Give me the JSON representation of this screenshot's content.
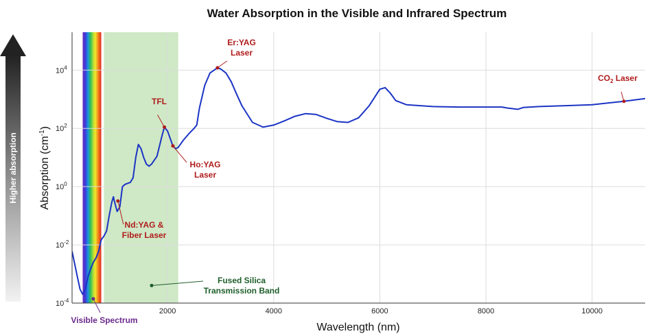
{
  "chart_data": {
    "type": "line",
    "title": "Water Absorption in the Visible and Infrared Spectrum",
    "xlabel": "Wavelength (nm)",
    "ylabel_main": "Absorption (cm",
    "ylabel_sup": "-1",
    "ylabel_end": ")",
    "side_arrow_label": "Higher absorption",
    "x_scale": "linear",
    "y_scale": "log",
    "xlim": [
      200,
      11000
    ],
    "ylim": [
      0.0001,
      200000
    ],
    "grid": true,
    "x_ticks": [
      2000,
      4000,
      6000,
      8000,
      10000
    ],
    "x_tick_labels": [
      "2000",
      "4000",
      "6000",
      "8000",
      "10000"
    ],
    "y_ticks": [
      0.0001,
      0.01,
      1,
      100,
      10000
    ],
    "y_tick_base": [
      "10",
      "10",
      "10",
      "10",
      "10"
    ],
    "y_tick_exp": [
      "-4",
      "-2",
      "0",
      "2",
      "4"
    ],
    "line_color": "#1a33c4",
    "series": [
      {
        "points": [
          [
            200,
            0.006
          ],
          [
            300,
            0.0008
          ],
          [
            350,
            0.0003
          ],
          [
            400,
            0.0002
          ],
          [
            450,
            0.0003
          ],
          [
            500,
            0.0008
          ],
          [
            550,
            0.0015
          ],
          [
            600,
            0.0025
          ],
          [
            650,
            0.0035
          ],
          [
            700,
            0.006
          ],
          [
            750,
            0.015
          ],
          [
            800,
            0.02
          ],
          [
            850,
            0.03
          ],
          [
            900,
            0.1
          ],
          [
            950,
            0.3
          ],
          [
            980,
            0.45
          ],
          [
            1000,
            0.3
          ],
          [
            1050,
            0.14
          ],
          [
            1100,
            0.2
          ],
          [
            1150,
            1.0
          ],
          [
            1200,
            1.2
          ],
          [
            1250,
            1.3
          ],
          [
            1300,
            1.4
          ],
          [
            1350,
            2.0
          ],
          [
            1400,
            10
          ],
          [
            1450,
            28
          ],
          [
            1500,
            20
          ],
          [
            1550,
            10
          ],
          [
            1600,
            6
          ],
          [
            1650,
            5
          ],
          [
            1700,
            6
          ],
          [
            1800,
            11
          ],
          [
            1900,
            60
          ],
          [
            1940,
            110
          ],
          [
            2000,
            80
          ],
          [
            2050,
            45
          ],
          [
            2100,
            25
          ],
          [
            2150,
            20
          ],
          [
            2200,
            22
          ],
          [
            2300,
            40
          ],
          [
            2400,
            65
          ],
          [
            2500,
            100
          ],
          [
            2550,
            130
          ],
          [
            2600,
            500
          ],
          [
            2700,
            3000
          ],
          [
            2800,
            8000
          ],
          [
            2940,
            12000
          ],
          [
            3000,
            11000
          ],
          [
            3100,
            8000
          ],
          [
            3200,
            4000
          ],
          [
            3300,
            1500
          ],
          [
            3400,
            600
          ],
          [
            3600,
            160
          ],
          [
            3800,
            110
          ],
          [
            4000,
            130
          ],
          [
            4200,
            180
          ],
          [
            4400,
            260
          ],
          [
            4600,
            320
          ],
          [
            4800,
            300
          ],
          [
            5000,
            220
          ],
          [
            5200,
            170
          ],
          [
            5400,
            160
          ],
          [
            5600,
            230
          ],
          [
            5800,
            600
          ],
          [
            6000,
            2200
          ],
          [
            6100,
            2500
          ],
          [
            6200,
            1600
          ],
          [
            6300,
            900
          ],
          [
            6500,
            650
          ],
          [
            7000,
            560
          ],
          [
            7500,
            540
          ],
          [
            8000,
            540
          ],
          [
            8300,
            540
          ],
          [
            8400,
            500
          ],
          [
            8600,
            450
          ],
          [
            8700,
            520
          ],
          [
            9000,
            560
          ],
          [
            9500,
            600
          ],
          [
            10000,
            650
          ],
          [
            10600,
            850
          ],
          [
            11000,
            1050
          ]
        ]
      }
    ],
    "annotations": [
      {
        "label": "Er:YAG",
        "label2": "Laser",
        "x": 2940,
        "y": 12000,
        "color": "#b01c1c"
      },
      {
        "label": "TFL",
        "label2": "",
        "x": 1940,
        "y": 110,
        "color": "#b01c1c"
      },
      {
        "label": "Ho:YAG",
        "label2": "Laser",
        "x": 2100,
        "y": 25,
        "color": "#b01c1c"
      },
      {
        "label": "Nd:YAG &",
        "label2": "Fiber Laser",
        "x": 1064,
        "y": 0.32,
        "color": "#b01c1c"
      },
      {
        "label": "CO2 Laser",
        "label2": "",
        "x": 10600,
        "y": 850,
        "color": "#b01c1c"
      }
    ],
    "co2_label": {
      "base": "CO",
      "sub": "2",
      "rest": " Laser"
    },
    "bands": [
      {
        "name": "Fused Silica",
        "name2": "Transmission Band",
        "x_start": 800,
        "x_end": 2200,
        "color": "#cfe8c6"
      },
      {
        "name": "Visible Spectrum",
        "x_start": 400,
        "x_end": 750
      }
    ]
  }
}
